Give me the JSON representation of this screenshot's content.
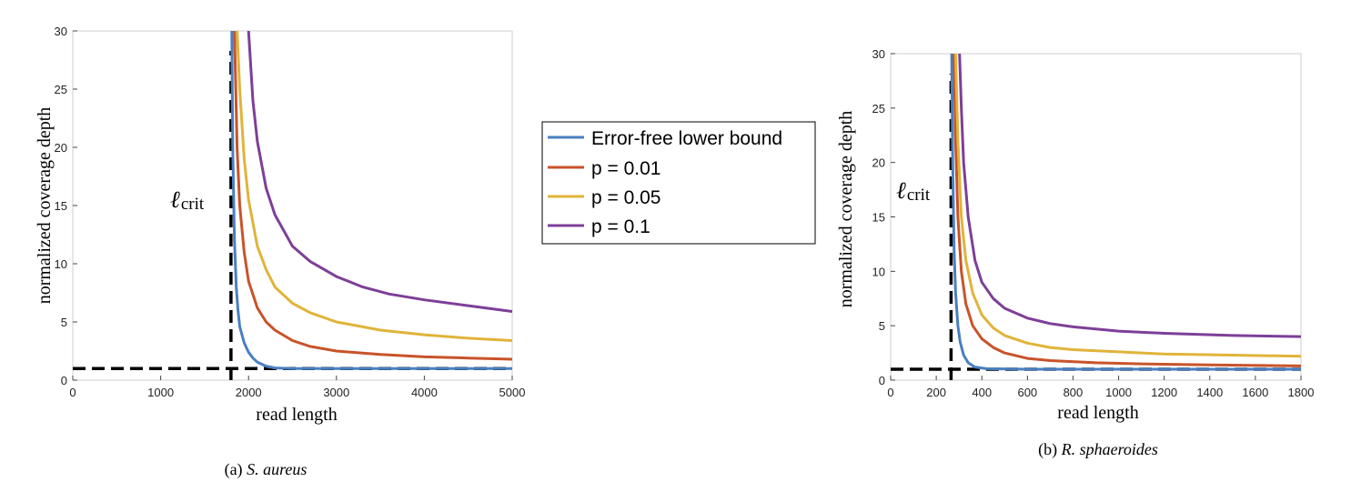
{
  "legend": {
    "entries": [
      {
        "label": "Error-free lower bound",
        "color": "#4a7fc1"
      },
      {
        "label": "p = 0.01",
        "color": "#c9532a"
      },
      {
        "label": "p = 0.05",
        "color": "#e0b43a"
      },
      {
        "label": "p = 0.1",
        "color": "#7d3f98"
      }
    ]
  },
  "chart_data": [
    {
      "type": "line",
      "caption_prefix": "(a) ",
      "caption_italic": "S. aureus",
      "xlabel": "read length",
      "ylabel": "normalized  coverage  depth",
      "xlim": [
        0,
        5000
      ],
      "ylim": [
        0,
        30
      ],
      "xticks": [
        0,
        1000,
        2000,
        3000,
        4000,
        5000
      ],
      "yticks": [
        0,
        5,
        10,
        15,
        20,
        25,
        30
      ],
      "annotation": {
        "main": "ℓ",
        "sub": "crit",
        "x": 1800
      },
      "reference_lines": {
        "crit_x": 1800,
        "y": 1
      },
      "series": [
        {
          "name": "Error-free lower bound",
          "color": "#4a7fc1",
          "x": [
            1810,
            1820,
            1840,
            1860,
            1880,
            1900,
            1950,
            2000,
            2050,
            2100,
            2200,
            2300,
            2500,
            3000,
            4000,
            5000
          ],
          "y": [
            30,
            20,
            12,
            8,
            6,
            4.6,
            3.2,
            2.4,
            1.9,
            1.55,
            1.2,
            1.05,
            1.0,
            1.0,
            1.0,
            1.0
          ]
        },
        {
          "name": "p = 0.01",
          "color": "#c9532a",
          "x": [
            1840,
            1870,
            1900,
            1950,
            2000,
            2100,
            2200,
            2300,
            2500,
            2700,
            3000,
            3500,
            4000,
            4500,
            5000
          ],
          "y": [
            30,
            20,
            15,
            11,
            8.5,
            6.2,
            5.0,
            4.3,
            3.4,
            2.9,
            2.5,
            2.2,
            2.0,
            1.9,
            1.8
          ]
        },
        {
          "name": "p = 0.05",
          "color": "#e0b43a",
          "x": [
            1870,
            1900,
            1950,
            2000,
            2100,
            2200,
            2300,
            2500,
            2700,
            3000,
            3500,
            4000,
            4500,
            5000
          ],
          "y": [
            30,
            25,
            19,
            15.5,
            11.5,
            9.5,
            8.0,
            6.6,
            5.8,
            5.0,
            4.3,
            3.9,
            3.6,
            3.4
          ]
        },
        {
          "name": "p = 0.1",
          "color": "#7d3f98",
          "x": [
            2000,
            2050,
            2100,
            2200,
            2300,
            2500,
            2700,
            3000,
            3300,
            3600,
            4000,
            4500,
            5000
          ],
          "y": [
            30,
            24,
            20.5,
            16.5,
            14.2,
            11.5,
            10.2,
            8.9,
            8.0,
            7.4,
            6.9,
            6.4,
            5.9
          ]
        }
      ]
    },
    {
      "type": "line",
      "caption_prefix": "(b) ",
      "caption_italic": "R. sphaeroides",
      "xlabel": "read length",
      "ylabel": "normalized  coverage  depth",
      "xlim": [
        0,
        1800
      ],
      "ylim": [
        0,
        30
      ],
      "xticks": [
        0,
        200,
        400,
        600,
        800,
        1000,
        1200,
        1400,
        1600,
        1800
      ],
      "yticks": [
        0,
        5,
        10,
        15,
        20,
        25,
        30
      ],
      "annotation": {
        "main": "ℓ",
        "sub": "crit",
        "x": 260
      },
      "reference_lines": {
        "crit_x": 265,
        "y": 1
      },
      "series": [
        {
          "name": "Error-free lower bound",
          "color": "#4a7fc1",
          "x": [
            268,
            272,
            278,
            285,
            295,
            305,
            320,
            340,
            370,
            420,
            600,
            1000,
            1800
          ],
          "y": [
            30,
            20,
            12,
            8,
            5,
            3.5,
            2.3,
            1.6,
            1.2,
            1.05,
            1.0,
            1.0,
            1.0
          ]
        },
        {
          "name": "p = 0.01",
          "color": "#c9532a",
          "x": [
            278,
            285,
            295,
            310,
            330,
            360,
            400,
            450,
            500,
            600,
            700,
            900,
            1100,
            1400,
            1800
          ],
          "y": [
            30,
            22,
            15,
            10,
            7,
            5,
            3.8,
            3.0,
            2.5,
            2.0,
            1.8,
            1.6,
            1.5,
            1.4,
            1.3
          ]
        },
        {
          "name": "p = 0.05",
          "color": "#e0b43a",
          "x": [
            285,
            295,
            310,
            330,
            360,
            400,
            450,
            500,
            600,
            700,
            800,
            1000,
            1200,
            1500,
            1800
          ],
          "y": [
            30,
            22,
            15,
            11,
            8,
            6,
            4.8,
            4.1,
            3.4,
            3.0,
            2.8,
            2.6,
            2.4,
            2.3,
            2.2
          ]
        },
        {
          "name": "p = 0.1",
          "color": "#7d3f98",
          "x": [
            302,
            310,
            320,
            340,
            370,
            400,
            450,
            500,
            600,
            700,
            800,
            1000,
            1200,
            1500,
            1800
          ],
          "y": [
            30,
            25,
            20,
            15,
            11,
            9,
            7.5,
            6.6,
            5.7,
            5.2,
            4.9,
            4.5,
            4.3,
            4.1,
            4.0
          ]
        }
      ]
    }
  ]
}
